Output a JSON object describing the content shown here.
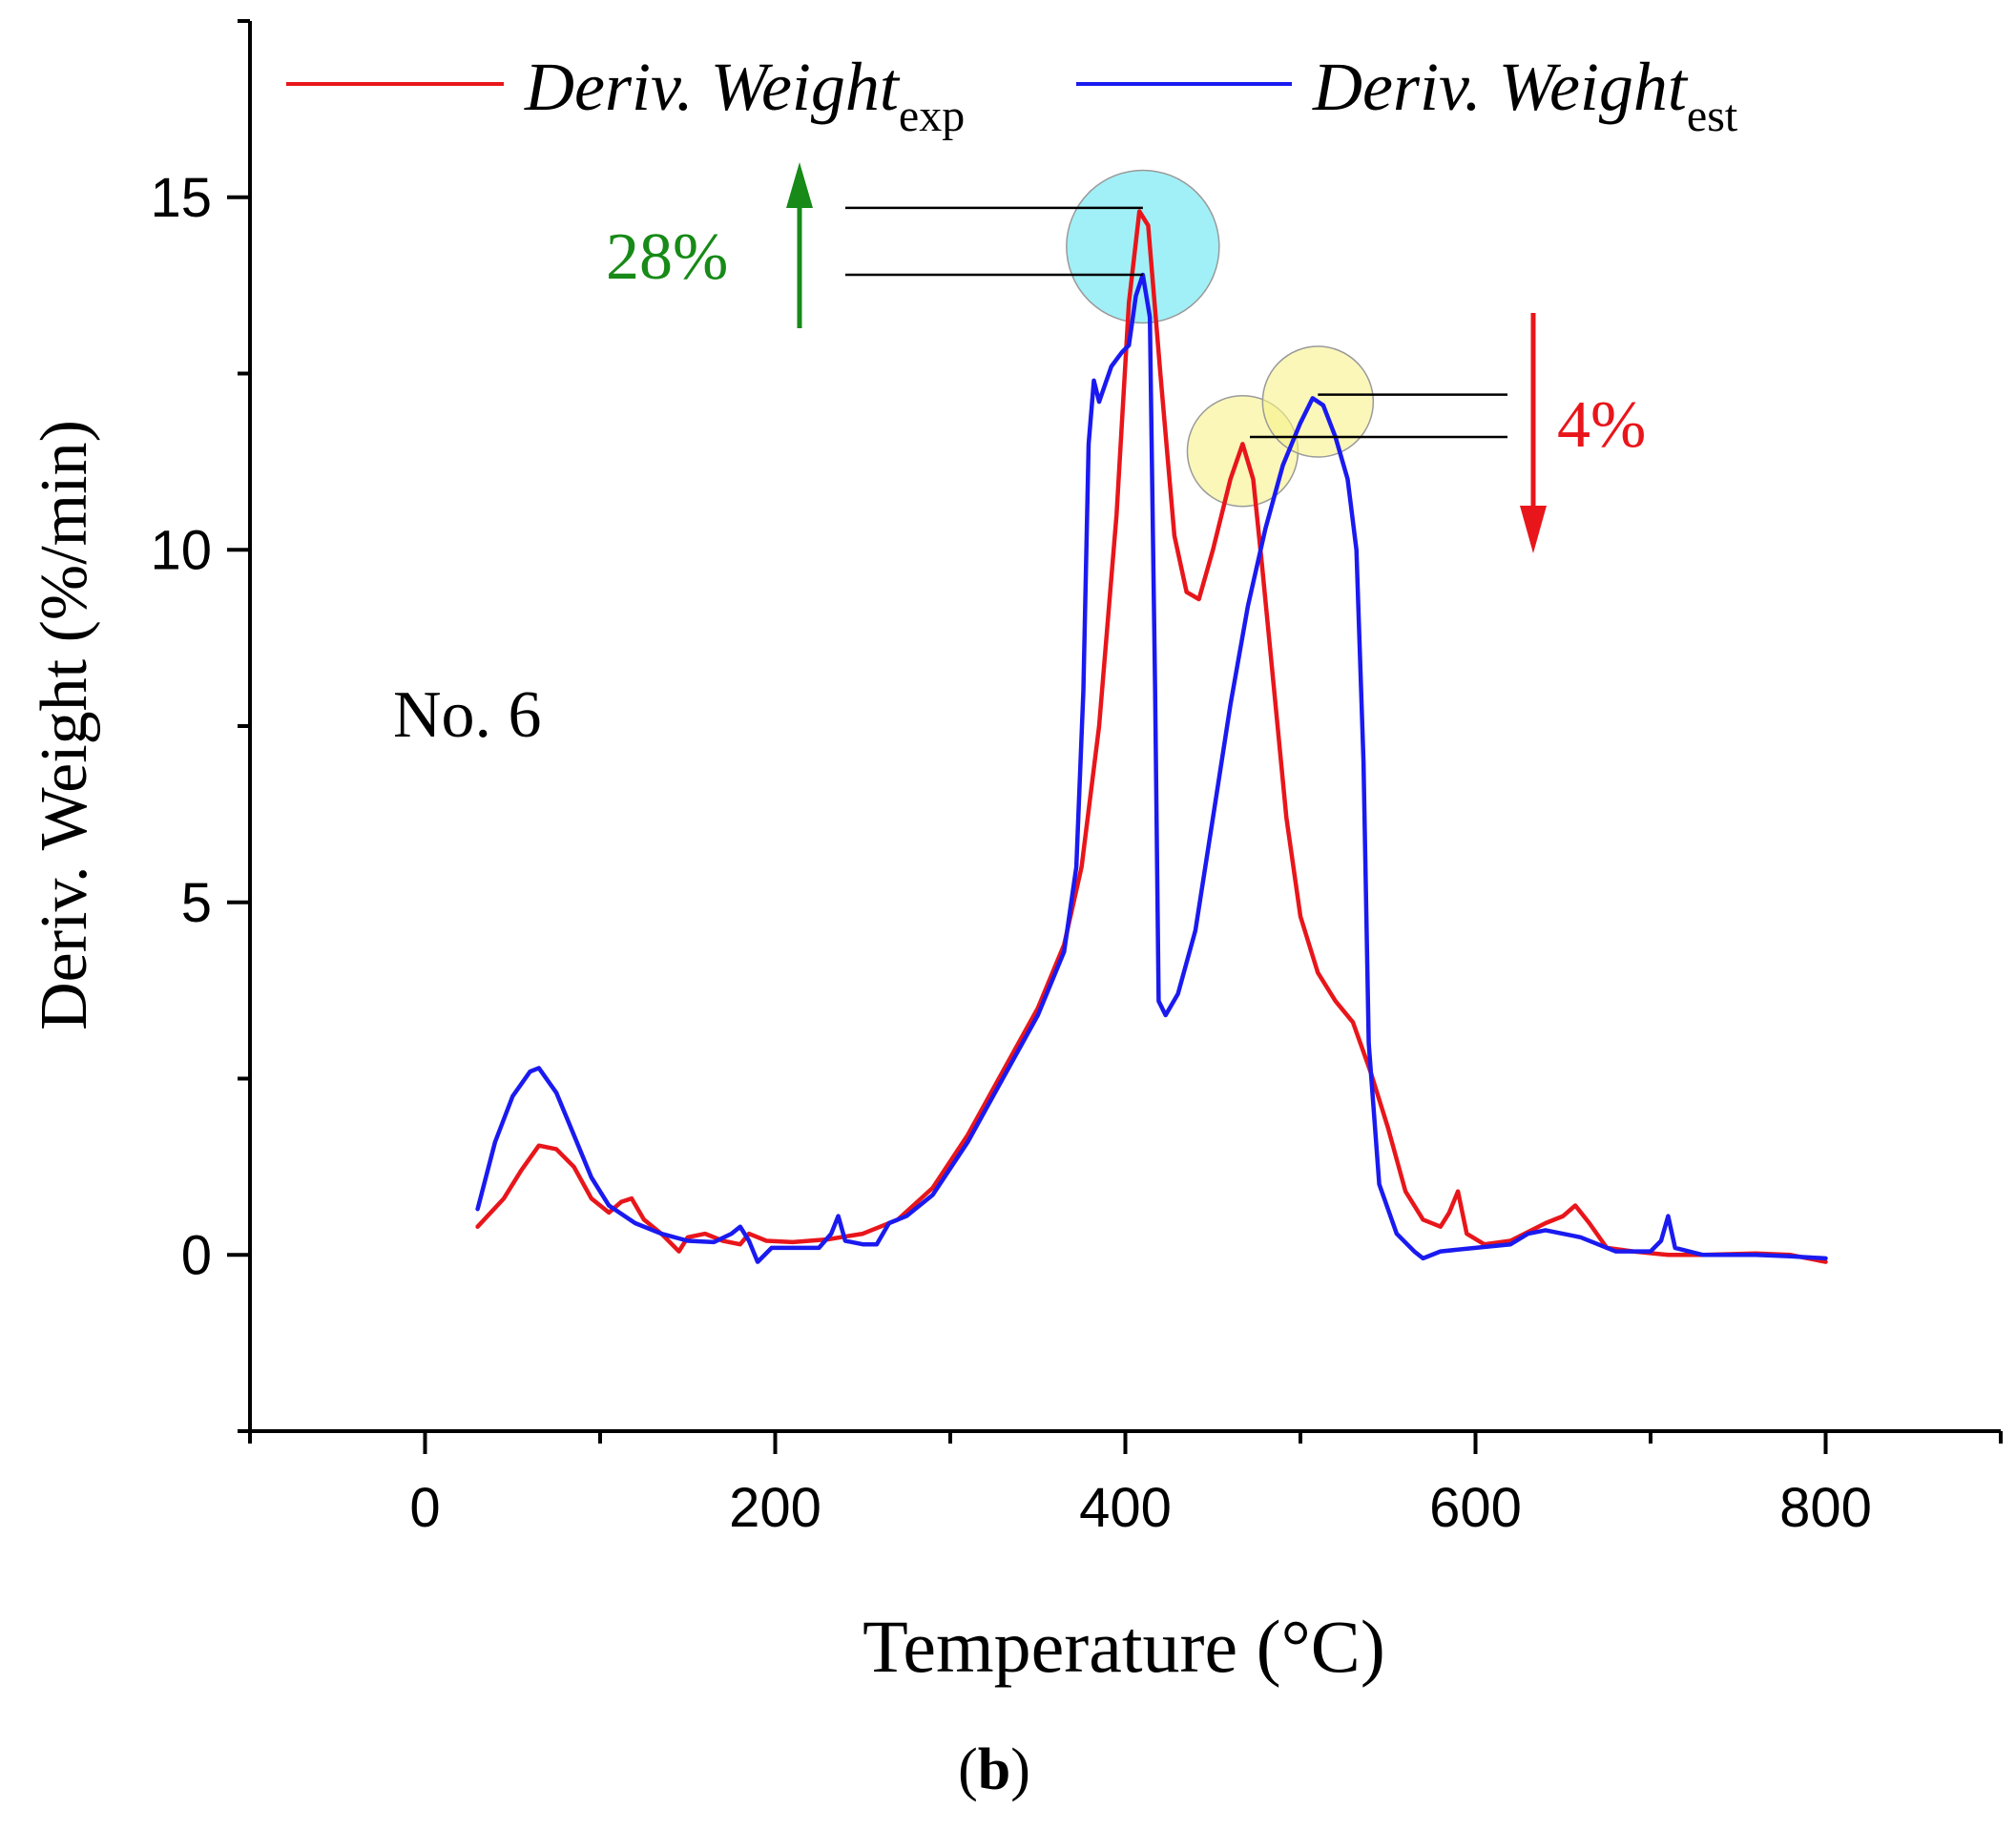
{
  "chart_data": {
    "type": "line",
    "panel_label": "b",
    "sample_label": "No. 6",
    "xlabel": "Temperature (°C)",
    "ylabel": "Deriv. Weight (%/min)",
    "xlim": [
      -100,
      900
    ],
    "ylim": [
      -2.5,
      17.5
    ],
    "x_ticks": [
      0,
      200,
      400,
      600,
      800
    ],
    "y_ticks": [
      0,
      5,
      10,
      15
    ],
    "legend_position": "top",
    "series": [
      {
        "name": "Deriv. Weight",
        "subscript": "exp",
        "color": "#e8161b",
        "points": [
          [
            30,
            0.4
          ],
          [
            45,
            0.8
          ],
          [
            55,
            1.2
          ],
          [
            65,
            1.55
          ],
          [
            75,
            1.5
          ],
          [
            85,
            1.25
          ],
          [
            95,
            0.8
          ],
          [
            105,
            0.6
          ],
          [
            112,
            0.75
          ],
          [
            118,
            0.8
          ],
          [
            125,
            0.5
          ],
          [
            135,
            0.3
          ],
          [
            145,
            0.05
          ],
          [
            150,
            0.25
          ],
          [
            160,
            0.3
          ],
          [
            170,
            0.2
          ],
          [
            180,
            0.15
          ],
          [
            185,
            0.3
          ],
          [
            195,
            0.2
          ],
          [
            210,
            0.18
          ],
          [
            230,
            0.22
          ],
          [
            250,
            0.3
          ],
          [
            270,
            0.5
          ],
          [
            290,
            0.95
          ],
          [
            310,
            1.7
          ],
          [
            330,
            2.6
          ],
          [
            350,
            3.5
          ],
          [
            365,
            4.4
          ],
          [
            375,
            5.5
          ],
          [
            385,
            7.5
          ],
          [
            395,
            10.5
          ],
          [
            402,
            13.5
          ],
          [
            408,
            14.8
          ],
          [
            413,
            14.6
          ],
          [
            420,
            12.5
          ],
          [
            428,
            10.2
          ],
          [
            435,
            9.4
          ],
          [
            442,
            9.3
          ],
          [
            450,
            10.0
          ],
          [
            460,
            11.0
          ],
          [
            467,
            11.5
          ],
          [
            473,
            11.0
          ],
          [
            478,
            9.8
          ],
          [
            485,
            8.0
          ],
          [
            492,
            6.2
          ],
          [
            500,
            4.8
          ],
          [
            510,
            4.0
          ],
          [
            520,
            3.6
          ],
          [
            530,
            3.3
          ],
          [
            540,
            2.6
          ],
          [
            550,
            1.8
          ],
          [
            560,
            0.9
          ],
          [
            570,
            0.5
          ],
          [
            580,
            0.4
          ],
          [
            585,
            0.6
          ],
          [
            590,
            0.9
          ],
          [
            595,
            0.3
          ],
          [
            605,
            0.15
          ],
          [
            620,
            0.2
          ],
          [
            640,
            0.45
          ],
          [
            650,
            0.55
          ],
          [
            657,
            0.7
          ],
          [
            665,
            0.45
          ],
          [
            675,
            0.1
          ],
          [
            690,
            0.05
          ],
          [
            710,
            0.0
          ],
          [
            730,
            0.0
          ],
          [
            760,
            0.02
          ],
          [
            780,
            0.0
          ],
          [
            800,
            -0.1
          ]
        ]
      },
      {
        "name": "Deriv. Weight",
        "subscript": "est",
        "color": "#1a1af0",
        "points": [
          [
            30,
            0.65
          ],
          [
            40,
            1.6
          ],
          [
            50,
            2.25
          ],
          [
            60,
            2.6
          ],
          [
            65,
            2.65
          ],
          [
            75,
            2.3
          ],
          [
            85,
            1.7
          ],
          [
            95,
            1.1
          ],
          [
            105,
            0.7
          ],
          [
            120,
            0.45
          ],
          [
            135,
            0.3
          ],
          [
            150,
            0.2
          ],
          [
            165,
            0.18
          ],
          [
            175,
            0.3
          ],
          [
            180,
            0.4
          ],
          [
            185,
            0.2
          ],
          [
            190,
            -0.1
          ],
          [
            198,
            0.1
          ],
          [
            210,
            0.1
          ],
          [
            225,
            0.1
          ],
          [
            232,
            0.3
          ],
          [
            236,
            0.55
          ],
          [
            240,
            0.2
          ],
          [
            250,
            0.15
          ],
          [
            258,
            0.15
          ],
          [
            265,
            0.45
          ],
          [
            275,
            0.55
          ],
          [
            290,
            0.85
          ],
          [
            310,
            1.6
          ],
          [
            330,
            2.5
          ],
          [
            350,
            3.4
          ],
          [
            365,
            4.3
          ],
          [
            372,
            5.5
          ],
          [
            376,
            8.0
          ],
          [
            379,
            11.5
          ],
          [
            382,
            12.4
          ],
          [
            385,
            12.1
          ],
          [
            392,
            12.6
          ],
          [
            398,
            12.8
          ],
          [
            402,
            12.9
          ],
          [
            406,
            13.6
          ],
          [
            410,
            13.9
          ],
          [
            414,
            13.3
          ],
          [
            417,
            8.0
          ],
          [
            419,
            3.6
          ],
          [
            423,
            3.4
          ],
          [
            430,
            3.7
          ],
          [
            440,
            4.6
          ],
          [
            450,
            6.2
          ],
          [
            460,
            7.8
          ],
          [
            470,
            9.2
          ],
          [
            480,
            10.3
          ],
          [
            490,
            11.2
          ],
          [
            500,
            11.8
          ],
          [
            507,
            12.15
          ],
          [
            513,
            12.05
          ],
          [
            520,
            11.6
          ],
          [
            527,
            11.0
          ],
          [
            532,
            10.0
          ],
          [
            536,
            7.0
          ],
          [
            539,
            3.0
          ],
          [
            545,
            1.0
          ],
          [
            555,
            0.3
          ],
          [
            565,
            0.05
          ],
          [
            570,
            -0.05
          ],
          [
            580,
            0.05
          ],
          [
            600,
            0.1
          ],
          [
            620,
            0.15
          ],
          [
            630,
            0.3
          ],
          [
            640,
            0.35
          ],
          [
            660,
            0.25
          ],
          [
            680,
            0.05
          ],
          [
            700,
            0.05
          ],
          [
            706,
            0.2
          ],
          [
            710,
            0.55
          ],
          [
            714,
            0.1
          ],
          [
            730,
            0.0
          ],
          [
            760,
            0.0
          ],
          [
            780,
            -0.02
          ],
          [
            800,
            -0.05
          ]
        ]
      }
    ],
    "annotations": {
      "increase": {
        "text": "28%",
        "color": "#178a17",
        "direction": "up",
        "upper_value": 14.85,
        "lower_value": 13.9,
        "peak_temp": 410
      },
      "decrease": {
        "text": "4%",
        "color": "#e8161b",
        "direction": "down",
        "upper_value": 12.2,
        "lower_value": 11.6,
        "peak_temp": 510
      },
      "highlights": [
        {
          "temp": 410,
          "value": 14.3,
          "color": "#63e6f2"
        },
        {
          "temp": 467,
          "value": 11.4,
          "color": "#f6f28a"
        },
        {
          "temp": 510,
          "value": 12.1,
          "color": "#f6f28a"
        }
      ]
    }
  }
}
